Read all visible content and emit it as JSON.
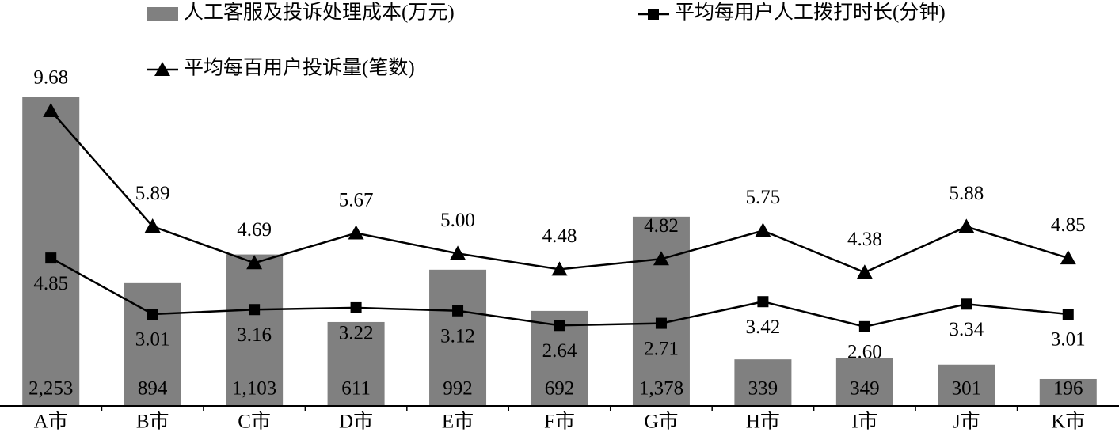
{
  "chart_data": {
    "type": "bar",
    "categories": [
      "A市",
      "B市",
      "C市",
      "D市",
      "E市",
      "F市",
      "G市",
      "H市",
      "I市",
      "J市",
      "K市"
    ],
    "series": [
      {
        "name": "人工客服及投诉处理成本(万元)",
        "type": "bar",
        "color": "#808080",
        "values": [
          2253,
          894,
          1103,
          611,
          992,
          692,
          1378,
          339,
          349,
          301,
          196
        ],
        "value_labels": [
          "2,253",
          "894",
          "1,103",
          "611",
          "992",
          "692",
          "1,378",
          "339",
          "349",
          "301",
          "196"
        ]
      },
      {
        "name": "平均每用户人工拨打时长(分钟)",
        "type": "line",
        "marker": "square",
        "color": "#000000",
        "values": [
          4.85,
          3.01,
          3.16,
          3.22,
          3.12,
          2.64,
          2.71,
          3.42,
          2.6,
          3.34,
          3.01
        ],
        "value_labels": [
          "4.85",
          "3.01",
          "3.16",
          "3.22",
          "3.12",
          "2.64",
          "2.71",
          "3.42",
          "2.60",
          "3.34",
          "3.01"
        ]
      },
      {
        "name": "平均每百用户投诉量(笔数)",
        "type": "line",
        "marker": "triangle",
        "color": "#000000",
        "values": [
          9.68,
          5.89,
          4.69,
          5.67,
          5.0,
          4.48,
          4.82,
          5.75,
          4.38,
          5.88,
          4.85
        ],
        "value_labels": [
          "9.68",
          "5.89",
          "4.69",
          "5.67",
          "5.00",
          "4.48",
          "4.82",
          "5.75",
          "4.38",
          "5.88",
          "4.85"
        ]
      }
    ]
  }
}
